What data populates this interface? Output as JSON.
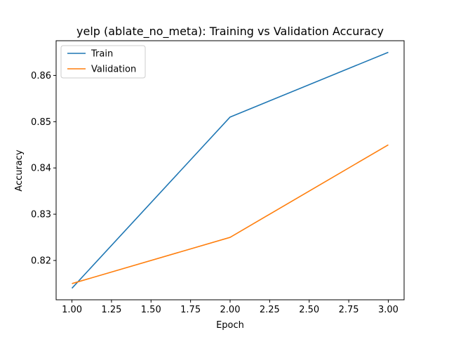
{
  "chart_data": {
    "type": "line",
    "title": "yelp (ablate_no_meta): Training vs Validation Accuracy",
    "xlabel": "Epoch",
    "ylabel": "Accuracy",
    "x": [
      1.0,
      2.0,
      3.0
    ],
    "series": [
      {
        "name": "Train",
        "values": [
          0.814,
          0.851,
          0.865
        ],
        "color": "#1f77b4"
      },
      {
        "name": "Validation",
        "values": [
          0.815,
          0.825,
          0.845
        ],
        "color": "#ff7f0e"
      }
    ],
    "xlim": [
      0.9,
      3.1
    ],
    "ylim": [
      0.8115,
      0.8675
    ],
    "xticks": [
      "1.00",
      "1.25",
      "1.50",
      "1.75",
      "2.00",
      "2.25",
      "2.50",
      "2.75",
      "3.00"
    ],
    "yticks": [
      "0.82",
      "0.83",
      "0.84",
      "0.85",
      "0.86"
    ],
    "grid": false,
    "legend": "top-left"
  }
}
